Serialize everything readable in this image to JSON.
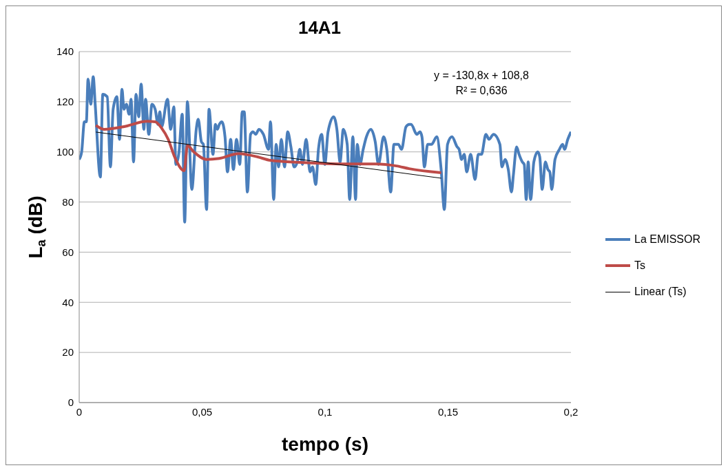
{
  "chart_data": {
    "type": "line",
    "title": "14A1",
    "xlabel": "tempo (s)",
    "ylabel": "L$_{a}$ (dB)",
    "xlim": [
      0,
      0.2
    ],
    "xticks": [
      0,
      {
        "value": 0.05,
        "label": "0,05"
      },
      {
        "value": 0.1,
        "label": "0,1"
      },
      {
        "value": 0.15,
        "label": "0,15"
      },
      {
        "value": 0.2,
        "label": "0,2"
      }
    ],
    "ylim": [
      0,
      140
    ],
    "yticks": [
      0,
      20,
      40,
      60,
      80,
      100,
      120,
      140
    ],
    "grid": "y",
    "legend": "right",
    "marker": "none",
    "line_style": "solid",
    "annotations": [
      "y = -130,8x + 108,8",
      "R² = 0,636"
    ],
    "series": [
      {
        "name": "La EMISSOR",
        "color": "#4a7ebb",
        "x": [
          0,
          0.001,
          0.0021,
          0.0029,
          0.0036,
          0.0047,
          0.0057,
          0.0065,
          0.0086,
          0.0096,
          0.0114,
          0.0127,
          0.0138,
          0.0153,
          0.0164,
          0.0174,
          0.0182,
          0.0192,
          0.0203,
          0.0211,
          0.0221,
          0.0231,
          0.0242,
          0.0252,
          0.0263,
          0.027,
          0.0283,
          0.0296,
          0.0309,
          0.032,
          0.0328,
          0.0335,
          0.0359,
          0.0372,
          0.0385,
          0.0393,
          0.0406,
          0.0419,
          0.0429,
          0.044,
          0.0458,
          0.0476,
          0.0484,
          0.0497,
          0.0505,
          0.0518,
          0.0528,
          0.0544,
          0.0554,
          0.0562,
          0.057,
          0.058,
          0.0593,
          0.0603,
          0.0616,
          0.0627,
          0.064,
          0.0653,
          0.0663,
          0.0671,
          0.0684,
          0.0697,
          0.0707,
          0.0718,
          0.0731,
          0.0749,
          0.077,
          0.0778,
          0.0791,
          0.0801,
          0.0811,
          0.0822,
          0.0835,
          0.0848,
          0.0861,
          0.0874,
          0.0887,
          0.0897,
          0.0908,
          0.0923,
          0.0939,
          0.0949,
          0.0962,
          0.0973,
          0.0986,
          0.0999,
          0.1012,
          0.1035,
          0.1048,
          0.1061,
          0.1074,
          0.109,
          0.11,
          0.1113,
          0.1124,
          0.1131,
          0.1142,
          0.1155,
          0.1168,
          0.1186,
          0.1204,
          0.1217,
          0.1238,
          0.1251,
          0.1267,
          0.128,
          0.1298,
          0.1311,
          0.1329,
          0.1342,
          0.135,
          0.1373,
          0.1386,
          0.1394,
          0.1404,
          0.1417,
          0.1433,
          0.1454,
          0.1472,
          0.1485,
          0.1498,
          0.1516,
          0.1537,
          0.1545,
          0.1555,
          0.1566,
          0.1576,
          0.1592,
          0.161,
          0.1623,
          0.1636,
          0.1654,
          0.1667,
          0.1685,
          0.1711,
          0.1719,
          0.1732,
          0.1745,
          0.1758,
          0.1766,
          0.1779,
          0.1789,
          0.1802,
          0.181,
          0.1818,
          0.1826,
          0.1836,
          0.1849,
          0.1865,
          0.1873,
          0.1883,
          0.1896,
          0.1906,
          0.1914,
          0.1922,
          0.1935,
          0.1953,
          0.1966,
          0.1974,
          0.1987,
          0.2
        ],
        "values": [
          97,
          100,
          112,
          112,
          129,
          119,
          130,
          119,
          90,
          123,
          122,
          94,
          117,
          122,
          105,
          125,
          117,
          119,
          115,
          121,
          96,
          123,
          114,
          127,
          109,
          121,
          107,
          119,
          117,
          111,
          116,
          110,
          121,
          109,
          118,
          95,
          100,
          115,
          72,
          120,
          85,
          109,
          113,
          104,
          103,
          77,
          117,
          99,
          111,
          109,
          111,
          112,
          106,
          92,
          105,
          93,
          105,
          95,
          116,
          116,
          84,
          107,
          108,
          107,
          109,
          107,
          101,
          112,
          81,
          103,
          94,
          105,
          94,
          108,
          102,
          94,
          96,
          101,
          95,
          105,
          92,
          94,
          87,
          101,
          107,
          95,
          108,
          114,
          109,
          96,
          109,
          103,
          81,
          106,
          81,
          103,
          95,
          101,
          106,
          109,
          104,
          95,
          106,
          101,
          84,
          103,
          103,
          101,
          110,
          111,
          111,
          107,
          108,
          106,
          94,
          103,
          103,
          106,
          93,
          77,
          103,
          106,
          102,
          101,
          97,
          99,
          92,
          99,
          89,
          99,
          99,
          107,
          105,
          107,
          103,
          94,
          97,
          93,
          84,
          91,
          102,
          99,
          96,
          95,
          81,
          96,
          81,
          96,
          100,
          98,
          85,
          96,
          93,
          92,
          85,
          97,
          101,
          103,
          101,
          105,
          108
        ]
      },
      {
        "name": "Ts",
        "color": "#be4b48",
        "x": [
          0.0068,
          0.0101,
          0.0179,
          0.0276,
          0.0309,
          0.0335,
          0.0362,
          0.0388,
          0.0427,
          0.044,
          0.0466,
          0.0518,
          0.057,
          0.0648,
          0.0726,
          0.0778,
          0.09,
          0.1074,
          0.1204,
          0.129,
          0.1342,
          0.1472
        ],
        "values": [
          110.6,
          109,
          110,
          112.2,
          112,
          109.5,
          105,
          98,
          92.5,
          102.5,
          100,
          97,
          97.4,
          99.3,
          98,
          96.6,
          95.8,
          95.2,
          95.2,
          94.4,
          93.3,
          91.7
        ]
      },
      {
        "name": "Linear (Ts)",
        "color": "#000000",
        "x": [
          0.0068,
          0.1472
        ],
        "values": [
          107.9,
          89.5
        ]
      }
    ]
  }
}
